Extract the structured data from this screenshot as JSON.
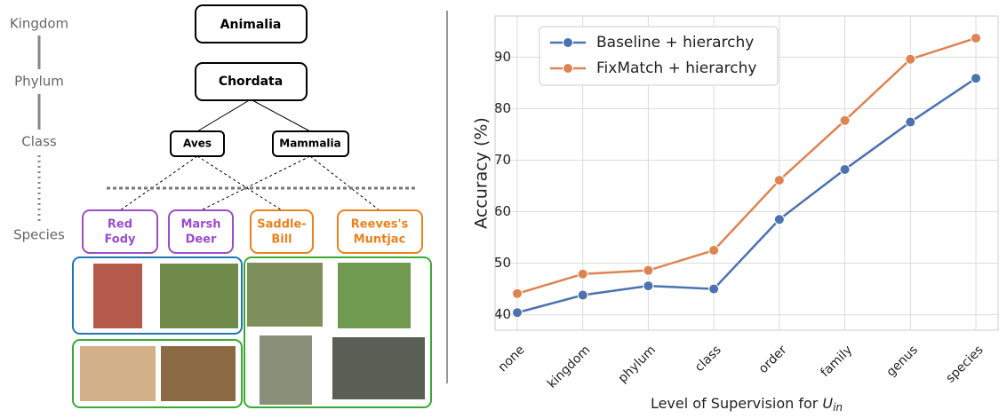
{
  "diagram": {
    "levels": [
      "Kingdom",
      "Phylum",
      "Class",
      "Species"
    ],
    "nodes": {
      "kingdom": "Animalia",
      "phylum": "Chordata",
      "classes": [
        "Aves",
        "Mammalia"
      ],
      "species": [
        [
          "Red",
          "Fody"
        ],
        [
          "Marsh",
          "Deer"
        ],
        [
          "Saddle-",
          "Bill"
        ],
        [
          "Reeves's",
          "Muntjac"
        ]
      ]
    }
  },
  "chart_data": {
    "type": "line",
    "categories": [
      "none",
      "kingdom",
      "phylum",
      "class",
      "order",
      "family",
      "genus",
      "species"
    ],
    "series": [
      {
        "name": "Baseline + hierarchy",
        "color": "#4c72b0",
        "values": [
          40.4,
          43.8,
          45.6,
          45.0,
          58.5,
          68.2,
          77.4,
          85.9
        ]
      },
      {
        "name": "FixMatch + hierarchy",
        "color": "#dd8452",
        "values": [
          44.1,
          47.9,
          48.6,
          52.5,
          66.1,
          77.7,
          89.6,
          93.7
        ]
      }
    ],
    "ylabel": "Accuracy (%)",
    "xlabel": "Level of Supervision for",
    "xlabel_symbol": "U",
    "xlabel_subscript": "in",
    "ylim": [
      37,
      98
    ],
    "yticks": [
      40,
      50,
      60,
      70,
      80,
      90
    ],
    "grid": true,
    "legend": "upper-left"
  }
}
